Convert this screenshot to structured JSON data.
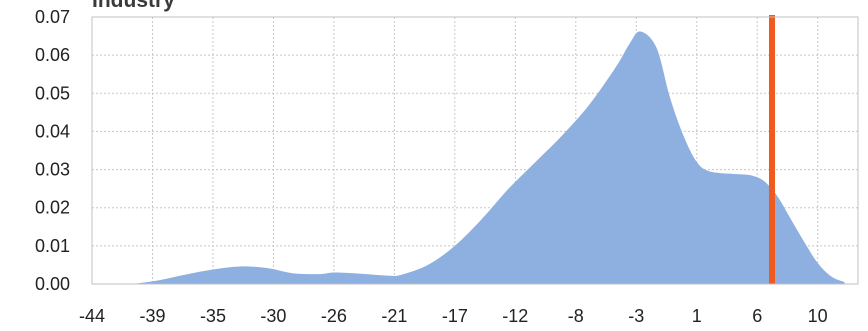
{
  "chart_data": {
    "type": "area",
    "title": "Industry",
    "xlabel": "",
    "ylabel": "",
    "xlim": [
      -44,
      13
    ],
    "ylim": [
      0,
      0.07
    ],
    "grid": true,
    "x_tick_labels": [
      "-44",
      "-39",
      "-35",
      "-30",
      "-26",
      "-21",
      "-17",
      "-12",
      "-8",
      "-3",
      "1",
      "6",
      "10"
    ],
    "x_tick_values": [
      -44,
      -39.5,
      -35,
      -30.5,
      -26,
      -21.5,
      -17,
      -12.5,
      -8,
      -3.5,
      1,
      5.5,
      10
    ],
    "y_tick_labels": [
      "0.00",
      "0.01",
      "0.02",
      "0.03",
      "0.04",
      "0.05",
      "0.06",
      "0.07"
    ],
    "y_tick_values": [
      0,
      0.01,
      0.02,
      0.03,
      0.04,
      0.05,
      0.06,
      0.07
    ],
    "fill_color": "#8db0e0",
    "marker_color": "#f05a1e",
    "marker_x": 6.6,
    "series": [
      {
        "x": [
          -41,
          -39,
          -37,
          -35,
          -33,
          -31,
          -29,
          -27,
          -26,
          -24,
          -22,
          -21,
          -19,
          -17,
          -15,
          -13,
          -11,
          -9,
          -7,
          -5,
          -4,
          -3.2,
          -2,
          -1,
          0,
          1,
          2,
          4,
          5,
          6,
          7,
          8,
          9,
          10,
          11,
          12
        ],
        "y": [
          0,
          0.001,
          0.0025,
          0.0038,
          0.0046,
          0.0042,
          0.0028,
          0.0026,
          0.003,
          0.0027,
          0.0022,
          0.0024,
          0.005,
          0.01,
          0.017,
          0.025,
          0.032,
          0.039,
          0.047,
          0.057,
          0.063,
          0.0662,
          0.062,
          0.049,
          0.039,
          0.032,
          0.0295,
          0.0288,
          0.0285,
          0.027,
          0.023,
          0.017,
          0.011,
          0.0055,
          0.002,
          0.0005
        ]
      }
    ]
  }
}
